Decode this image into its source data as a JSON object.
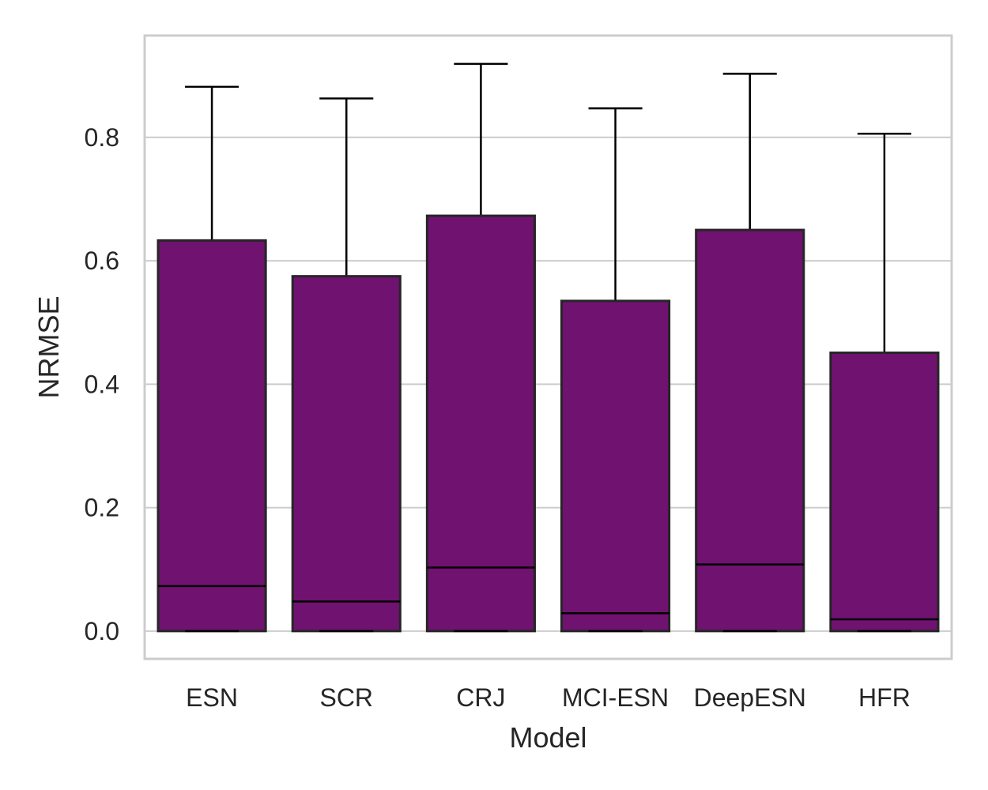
{
  "chart_data": {
    "type": "box",
    "xlabel": "Model",
    "ylabel": "NRMSE",
    "categories": [
      "ESN",
      "SCR",
      "CRJ",
      "MCI-ESN",
      "DeepESN",
      "HFR"
    ],
    "boxes": [
      {
        "category": "ESN",
        "whisker_low": 0.0,
        "q1": 0.0,
        "median": 0.073,
        "q3": 0.633,
        "whisker_high": 0.882
      },
      {
        "category": "SCR",
        "whisker_low": 0.0,
        "q1": 0.0,
        "median": 0.048,
        "q3": 0.575,
        "whisker_high": 0.863
      },
      {
        "category": "CRJ",
        "whisker_low": 0.0,
        "q1": 0.0,
        "median": 0.103,
        "q3": 0.673,
        "whisker_high": 0.919
      },
      {
        "category": "MCI-ESN",
        "whisker_low": 0.0,
        "q1": 0.0,
        "median": 0.029,
        "q3": 0.535,
        "whisker_high": 0.847
      },
      {
        "category": "DeepESN",
        "whisker_low": 0.0,
        "q1": 0.0,
        "median": 0.108,
        "q3": 0.65,
        "whisker_high": 0.903
      },
      {
        "category": "HFR",
        "whisker_low": 0.0,
        "q1": 0.0,
        "median": 0.019,
        "q3": 0.451,
        "whisker_high": 0.806
      }
    ],
    "ylim": [
      -0.045,
      0.965
    ],
    "yticks": [
      "0.0",
      "0.2",
      "0.4",
      "0.6",
      "0.8"
    ],
    "ytick_values": [
      0.0,
      0.2,
      0.4,
      0.6,
      0.8
    ],
    "grid": "horizontal",
    "box_color": "#701270",
    "edge_color": "#262626",
    "grid_color": "#cccccc"
  }
}
